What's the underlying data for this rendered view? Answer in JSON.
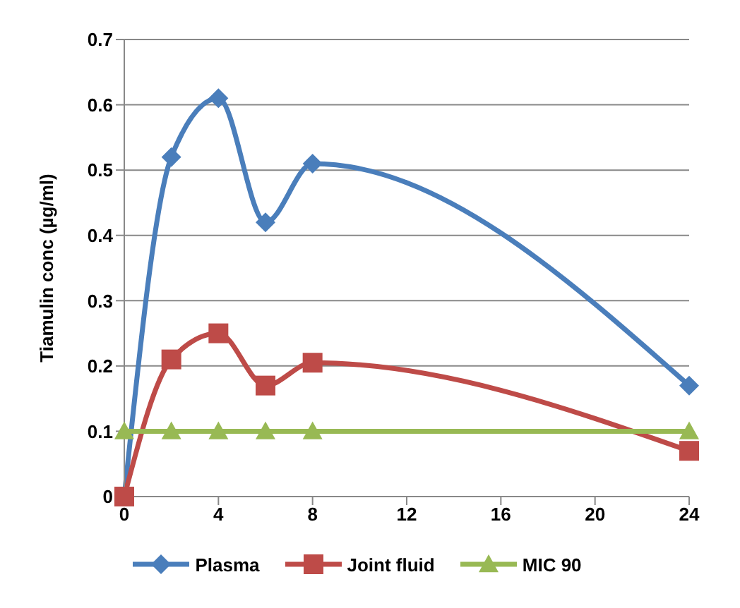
{
  "chart_data": {
    "type": "line",
    "ylabel": "Tiamulin conc (µg/ml)",
    "x": [
      0,
      2,
      4,
      6,
      8,
      24
    ],
    "series": [
      {
        "name": "Plasma",
        "color": "#4a7ebb",
        "marker": "diamond",
        "values": [
          0,
          0.52,
          0.61,
          0.42,
          0.51,
          0.17
        ]
      },
      {
        "name": "Joint fluid",
        "color": "#be4b48",
        "marker": "square",
        "values": [
          0,
          0.21,
          0.25,
          0.17,
          0.205,
          0.07
        ]
      },
      {
        "name": "MIC 90",
        "color": "#98b954",
        "marker": "triangle",
        "values": [
          0.1,
          0.1,
          0.1,
          0.1,
          0.1,
          0.1
        ]
      }
    ],
    "xlim": [
      0,
      24
    ],
    "xticks": [
      0,
      4,
      8,
      12,
      16,
      20,
      24
    ],
    "ylim": [
      0,
      0.7
    ],
    "yticks": [
      0,
      0.1,
      0.2,
      0.3,
      0.4,
      0.5,
      0.6,
      0.7
    ],
    "grid": "y",
    "legend": "bottom",
    "line_style": "solid"
  }
}
